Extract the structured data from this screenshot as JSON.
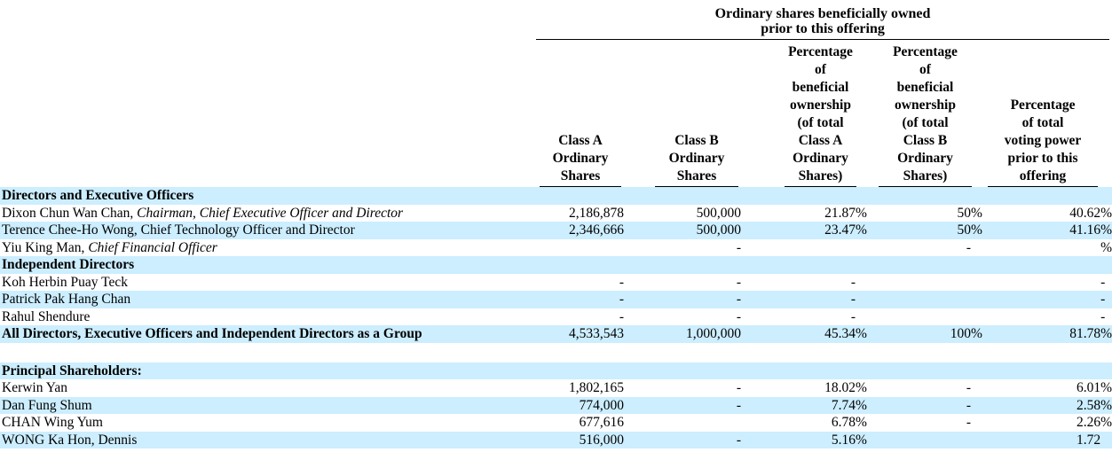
{
  "colors": {
    "row_shade": "#CCEEFF",
    "text": "#000000",
    "rule": "#000000"
  },
  "table": {
    "group_header": {
      "line1": "Ordinary shares beneficially owned",
      "line2": "prior to this offering"
    },
    "columns": [
      {
        "id": "class_a",
        "label": "Class A\nOrdinary\nShares"
      },
      {
        "id": "class_b",
        "label": "Class B\nOrdinary\nShares"
      },
      {
        "id": "pct_class_a",
        "label": "Percentage\nof\nbeneficial\nownership\n(of total\nClass A\nOrdinary\nShares)"
      },
      {
        "id": "pct_class_b",
        "label": "Percentage\nof\nbeneficial\nownership\n(of total\nClass B\nOrdinary\nShares)"
      },
      {
        "id": "voting_power",
        "label": "Percentage\nof total\nvoting power\nprior to this\noffering"
      }
    ],
    "rows": [
      {
        "kind": "section",
        "name": "Directors and Executive Officers",
        "bold": true,
        "shaded": true,
        "cells": [
          {
            "v": "",
            "s": ""
          },
          {
            "v": "",
            "s": ""
          },
          {
            "v": "",
            "s": ""
          },
          {
            "v": "",
            "s": ""
          },
          {
            "v": "",
            "s": ""
          }
        ]
      },
      {
        "kind": "person",
        "name": "Dixon Chun Wan Chan,",
        "title": " Chairman, Chief Executive Officer and Director",
        "title_italic": true,
        "bold": false,
        "shaded": false,
        "cells": [
          {
            "v": "2,186,878",
            "s": ""
          },
          {
            "v": "500,000",
            "s": ""
          },
          {
            "v": "21.87",
            "s": "%"
          },
          {
            "v": "50",
            "s": "%"
          },
          {
            "v": "40.62",
            "s": "%"
          }
        ]
      },
      {
        "kind": "person",
        "name": "Terence Chee-Ho Wong,",
        "title": " Chief Technology Officer and Director",
        "title_italic": false,
        "bold": false,
        "shaded": true,
        "cells": [
          {
            "v": "2,346,666",
            "s": ""
          },
          {
            "v": "500,000",
            "s": ""
          },
          {
            "v": "23.47",
            "s": "%"
          },
          {
            "v": "50",
            "s": "%"
          },
          {
            "v": "41.16",
            "s": "%"
          }
        ]
      },
      {
        "kind": "person",
        "name": "Yiu King Man,",
        "title": " Chief Financial Officer",
        "title_italic": true,
        "bold": false,
        "shaded": false,
        "cells": [
          {
            "v": "",
            "s": ""
          },
          {
            "v": "-",
            "s": ""
          },
          {
            "v": "",
            "s": ""
          },
          {
            "v": "-",
            "s": ""
          },
          {
            "v": "",
            "s": "%"
          }
        ]
      },
      {
        "kind": "section",
        "name": "Independent Directors",
        "bold": true,
        "shaded": true,
        "cells": [
          {
            "v": "",
            "s": ""
          },
          {
            "v": "",
            "s": ""
          },
          {
            "v": "",
            "s": ""
          },
          {
            "v": "",
            "s": ""
          },
          {
            "v": "",
            "s": ""
          }
        ]
      },
      {
        "kind": "person",
        "name": "Koh Herbin Puay Teck",
        "title": "",
        "title_italic": false,
        "bold": false,
        "shaded": false,
        "cells": [
          {
            "v": "-",
            "s": ""
          },
          {
            "v": "-",
            "s": ""
          },
          {
            "v": "-",
            "s": ""
          },
          {
            "v": "",
            "s": ""
          },
          {
            "v": "",
            "s": "-"
          }
        ]
      },
      {
        "kind": "person",
        "name": "Patrick Pak Hang Chan",
        "title": "",
        "title_italic": false,
        "bold": false,
        "shaded": true,
        "cells": [
          {
            "v": "-",
            "s": ""
          },
          {
            "v": "-",
            "s": ""
          },
          {
            "v": "-",
            "s": ""
          },
          {
            "v": "",
            "s": ""
          },
          {
            "v": "",
            "s": "-"
          }
        ]
      },
      {
        "kind": "person",
        "name": "Rahul Shendure",
        "title": "",
        "title_italic": false,
        "bold": false,
        "shaded": false,
        "cells": [
          {
            "v": "-",
            "s": ""
          },
          {
            "v": "-",
            "s": ""
          },
          {
            "v": "-",
            "s": ""
          },
          {
            "v": "",
            "s": ""
          },
          {
            "v": "",
            "s": "-"
          }
        ]
      },
      {
        "kind": "total",
        "name": "All Directors, Executive Officers and Independent Directors as a Group",
        "bold": true,
        "shaded": true,
        "cells": [
          {
            "v": "4,533,543",
            "s": ""
          },
          {
            "v": "1,000,000",
            "s": ""
          },
          {
            "v": "45.34",
            "s": "%"
          },
          {
            "v": "100",
            "s": "%"
          },
          {
            "v": "81.78",
            "s": "%"
          }
        ]
      },
      {
        "kind": "spacer",
        "shaded": false
      },
      {
        "kind": "section",
        "name": "Principal Shareholders:",
        "bold": true,
        "shaded": true,
        "cells": [
          {
            "v": "",
            "s": ""
          },
          {
            "v": "",
            "s": ""
          },
          {
            "v": "",
            "s": ""
          },
          {
            "v": "",
            "s": ""
          },
          {
            "v": "",
            "s": ""
          }
        ]
      },
      {
        "kind": "person",
        "name": "Kerwin Yan",
        "title": "",
        "title_italic": false,
        "bold": false,
        "shaded": false,
        "cells": [
          {
            "v": "1,802,165",
            "s": ""
          },
          {
            "v": "-",
            "s": ""
          },
          {
            "v": "18.02",
            "s": "%"
          },
          {
            "v": "-",
            "s": ""
          },
          {
            "v": "6.01",
            "s": "%"
          }
        ]
      },
      {
        "kind": "person",
        "name": "Dan Fung Shum",
        "title": "",
        "title_italic": false,
        "bold": false,
        "shaded": true,
        "cells": [
          {
            "v": "774,000",
            "s": ""
          },
          {
            "v": "-",
            "s": ""
          },
          {
            "v": "7.74",
            "s": "%"
          },
          {
            "v": "-",
            "s": ""
          },
          {
            "v": "2.58",
            "s": "%"
          }
        ]
      },
      {
        "kind": "person",
        "name": "CHAN Wing Yum",
        "title": "",
        "title_italic": false,
        "bold": false,
        "shaded": false,
        "cells": [
          {
            "v": "677,616",
            "s": ""
          },
          {
            "v": "",
            "s": ""
          },
          {
            "v": "6.78",
            "s": "%"
          },
          {
            "v": "-",
            "s": ""
          },
          {
            "v": "2.26",
            "s": "%"
          }
        ]
      },
      {
        "kind": "person",
        "name": "WONG Ka Hon, Dennis",
        "title": "",
        "title_italic": false,
        "bold": false,
        "shaded": true,
        "cells": [
          {
            "v": "516,000",
            "s": ""
          },
          {
            "v": "-",
            "s": ""
          },
          {
            "v": "5.16",
            "s": "%"
          },
          {
            "v": "",
            "s": ""
          },
          {
            "v": "1.72",
            "s": ""
          }
        ]
      }
    ]
  }
}
